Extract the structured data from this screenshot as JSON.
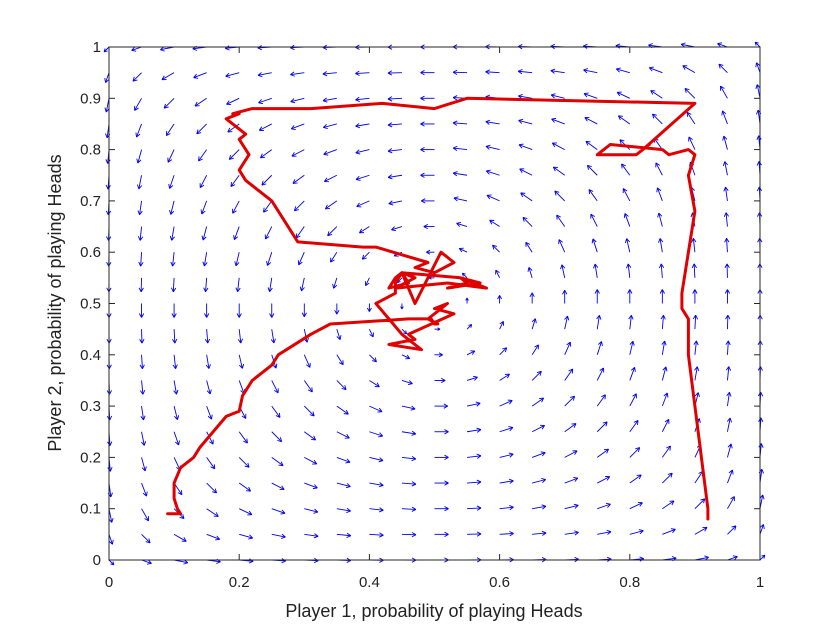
{
  "chart_data": {
    "type": "line",
    "title": "",
    "xlabel": "Player 1, probability of playing Heads",
    "ylabel": "Player 2, probability of playing Heads",
    "xlim": [
      0,
      1
    ],
    "ylim": [
      0,
      1
    ],
    "xticks": [
      "0",
      "0.2",
      "0.4",
      "0.6",
      "0.8",
      "1"
    ],
    "yticks": [
      "0",
      "0.1",
      "0.2",
      "0.3",
      "0.4",
      "0.5",
      "0.6",
      "0.7",
      "0.8",
      "0.9",
      "1"
    ],
    "grid": false,
    "legend": "none",
    "colors": {
      "trajectory": "#e00000",
      "vector_field": "#0000ee",
      "axes": "#262626"
    },
    "vector_field": {
      "equilibrium": [
        0.5,
        0.5
      ],
      "x_step": 0.05,
      "y_step": 0.05,
      "description_of_field": "rotation around equilibrium"
    },
    "series": [
      {
        "style": "trajectory",
        "x": [
          0.09,
          0.09,
          0.1,
          0.11,
          0.105,
          0.1,
          0.1,
          0.11,
          0.13,
          0.14,
          0.18,
          0.2,
          0.205,
          0.22,
          0.25,
          0.26,
          0.31,
          0.34,
          0.46,
          0.495,
          0.5,
          0.505,
          0.49,
          0.52,
          0.5,
          0.53,
          0.46,
          0.47,
          0.43,
          0.48,
          0.45,
          0.43,
          0.41,
          0.44,
          0.44,
          0.45,
          0.46,
          0.43,
          0.44,
          0.45,
          0.47,
          0.44,
          0.52,
          0.58,
          0.54,
          0.55,
          0.52,
          0.57,
          0.54,
          0.45,
          0.47,
          0.51,
          0.53,
          0.5,
          0.47,
          0.49,
          0.41,
          0.39,
          0.29,
          0.25,
          0.21,
          0.2,
          0.215,
          0.2,
          0.21,
          0.19,
          0.2,
          0.18,
          0.2,
          0.2,
          0.19,
          0.22,
          0.31,
          0.42,
          0.5,
          0.55,
          0.9,
          0.82,
          0.83,
          0.81,
          0.75,
          0.76,
          0.77,
          0.85,
          0.86,
          0.89,
          0.9,
          0.89,
          0.9,
          0.88,
          0.88,
          0.88,
          0.89,
          0.89,
          0.9,
          0.91,
          0.92,
          0.92
        ],
        "y": [
          0.09,
          0.09,
          0.09,
          0.09,
          0.1,
          0.12,
          0.15,
          0.18,
          0.2,
          0.22,
          0.28,
          0.29,
          0.32,
          0.35,
          0.38,
          0.4,
          0.44,
          0.46,
          0.47,
          0.47,
          0.46,
          0.46,
          0.47,
          0.5,
          0.49,
          0.48,
          0.44,
          0.43,
          0.42,
          0.41,
          0.44,
          0.47,
          0.5,
          0.52,
          0.54,
          0.56,
          0.54,
          0.53,
          0.55,
          0.56,
          0.55,
          0.53,
          0.54,
          0.53,
          0.55,
          0.54,
          0.53,
          0.54,
          0.55,
          0.56,
          0.5,
          0.6,
          0.58,
          0.56,
          0.57,
          0.58,
          0.61,
          0.61,
          0.62,
          0.7,
          0.74,
          0.76,
          0.79,
          0.82,
          0.83,
          0.85,
          0.84,
          0.86,
          0.87,
          0.87,
          0.87,
          0.88,
          0.88,
          0.89,
          0.88,
          0.9,
          0.89,
          0.8,
          0.81,
          0.79,
          0.79,
          0.8,
          0.81,
          0.8,
          0.79,
          0.8,
          0.79,
          0.75,
          0.68,
          0.52,
          0.5,
          0.49,
          0.47,
          0.4,
          0.3,
          0.2,
          0.1,
          0.08
        ]
      }
    ]
  }
}
